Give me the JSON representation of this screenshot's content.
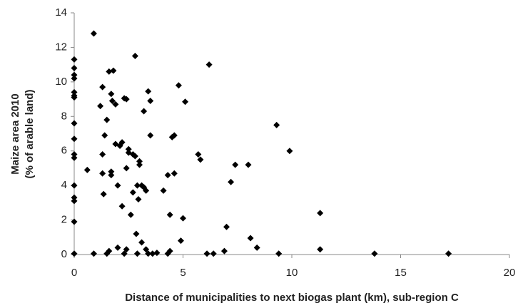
{
  "chart_data": {
    "type": "scatter",
    "xlabel": "Distance of municipalities to next biogas plant (km), sub-region C",
    "ylabel": [
      "Maize area 2010",
      "(% of arable land)"
    ],
    "color": "#000000",
    "marker": "diamond",
    "xlim": [
      0,
      20
    ],
    "xticks": [
      0,
      5,
      10,
      15,
      20
    ],
    "ylim": [
      0,
      14
    ],
    "yticks": [
      0,
      2,
      4,
      6,
      8,
      10,
      12,
      14
    ],
    "grid": false,
    "x": [
      0,
      0,
      0,
      0,
      0,
      0,
      0,
      0,
      0,
      0,
      0,
      0,
      0,
      0,
      0,
      0,
      0.6,
      0.9,
      0.9,
      1.2,
      1.3,
      1.3,
      1.3,
      1.35,
      1.4,
      1.5,
      1.5,
      1.6,
      1.6,
      1.7,
      1.7,
      1.7,
      1.75,
      1.8,
      1.9,
      1.9,
      2.0,
      2.0,
      2.1,
      2.2,
      2.2,
      2.3,
      2.4,
      2.3,
      2.4,
      2.5,
      2.5,
      2.4,
      2.6,
      2.7,
      2.7,
      2.8,
      2.8,
      2.85,
      2.9,
      2.9,
      2.95,
      3.0,
      3.0,
      3.1,
      3.1,
      3.2,
      3.2,
      3.3,
      3.3,
      3.4,
      3.4,
      3.5,
      3.5,
      3.6,
      3.8,
      4.1,
      4.3,
      4.3,
      4.4,
      4.4,
      4.5,
      4.6,
      4.6,
      4.8,
      4.9,
      5.0,
      5.1,
      5.7,
      5.8,
      6.1,
      6.2,
      6.4,
      6.9,
      7.0,
      7.2,
      7.4,
      8.0,
      8.1,
      8.4,
      9.3,
      9.4,
      9.9,
      11.3,
      11.3,
      13.8,
      17.2
    ],
    "values": [
      11.3,
      10.8,
      10.4,
      10.2,
      9.4,
      9.2,
      9.1,
      7.6,
      6.7,
      5.8,
      5.6,
      4.0,
      3.3,
      3.1,
      1.9,
      0.05,
      4.9,
      12.8,
      0.05,
      8.6,
      9.7,
      5.8,
      4.7,
      3.5,
      6.9,
      0.05,
      7.8,
      10.6,
      0.2,
      4.8,
      4.6,
      9.3,
      8.9,
      10.65,
      8.7,
      6.4,
      0.4,
      4.0,
      6.3,
      6.5,
      2.8,
      9.05,
      9.0,
      0.05,
      5.0,
      5.9,
      6.1,
      0.3,
      2.3,
      5.8,
      3.6,
      5.7,
      11.5,
      1.2,
      4.0,
      0.05,
      3.2,
      5.4,
      5.2,
      4.0,
      0.7,
      8.3,
      3.9,
      3.7,
      0.3,
      9.45,
      0.05,
      8.9,
      6.9,
      0.05,
      0.1,
      3.7,
      4.6,
      0.05,
      2.3,
      0.2,
      6.8,
      6.9,
      4.7,
      9.8,
      0.8,
      2.1,
      8.85,
      5.8,
      5.5,
      0.05,
      11.0,
      0.05,
      0.2,
      1.6,
      4.2,
      5.2,
      5.2,
      0.95,
      0.4,
      7.5,
      0.05,
      6.0,
      2.4,
      0.3,
      0.05,
      0.05
    ]
  }
}
